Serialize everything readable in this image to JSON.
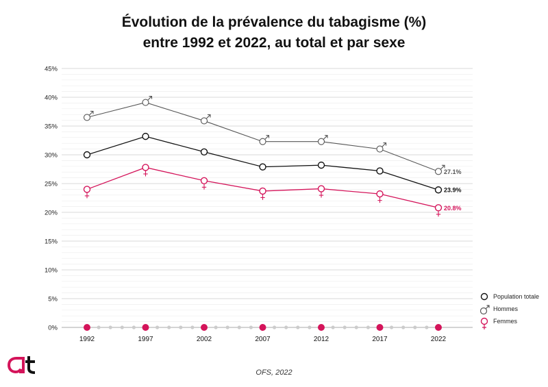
{
  "title_line1": "Évolution de la prévalence du tabagisme (%)",
  "title_line2": "entre 1992 et 2022, au total et par sexe",
  "source": "OFS, 2022",
  "colors": {
    "total": "#111111",
    "hommes": "#555555",
    "femmes": "#d4145a",
    "grid": "#d9d9d9",
    "axis": "#aaaaaa"
  },
  "chart_data": {
    "type": "line",
    "title": "Évolution de la prévalence du tabagisme (%) entre 1992 et 2022, au total et par sexe",
    "x": [
      1992,
      1997,
      2002,
      2007,
      2012,
      2017,
      2022
    ],
    "x_tick_labels": [
      "1992",
      "1997",
      "2002",
      "2007",
      "2012",
      "2017",
      "2022"
    ],
    "ylim": [
      0,
      45
    ],
    "y_tick_labels": [
      "0%",
      "5%",
      "10%",
      "15%",
      "20%",
      "25%",
      "30%",
      "35%",
      "40%",
      "45%"
    ],
    "y_ticks": [
      0,
      5,
      10,
      15,
      20,
      25,
      30,
      35,
      40,
      45
    ],
    "grid": true,
    "legend_position": "right",
    "series": [
      {
        "name": "Population totale",
        "key": "total",
        "values": [
          30.0,
          33.2,
          30.5,
          27.9,
          28.2,
          27.2,
          23.9
        ],
        "end_label": "23.9%"
      },
      {
        "name": "Hommes",
        "key": "hommes",
        "values": [
          36.5,
          39.1,
          35.9,
          32.3,
          32.3,
          31.0,
          27.1
        ],
        "end_label": "27.1%"
      },
      {
        "name": "Femmes",
        "key": "femmes",
        "values": [
          24.0,
          27.8,
          25.5,
          23.7,
          24.1,
          23.2,
          20.8
        ],
        "end_label": "20.8%"
      }
    ]
  }
}
